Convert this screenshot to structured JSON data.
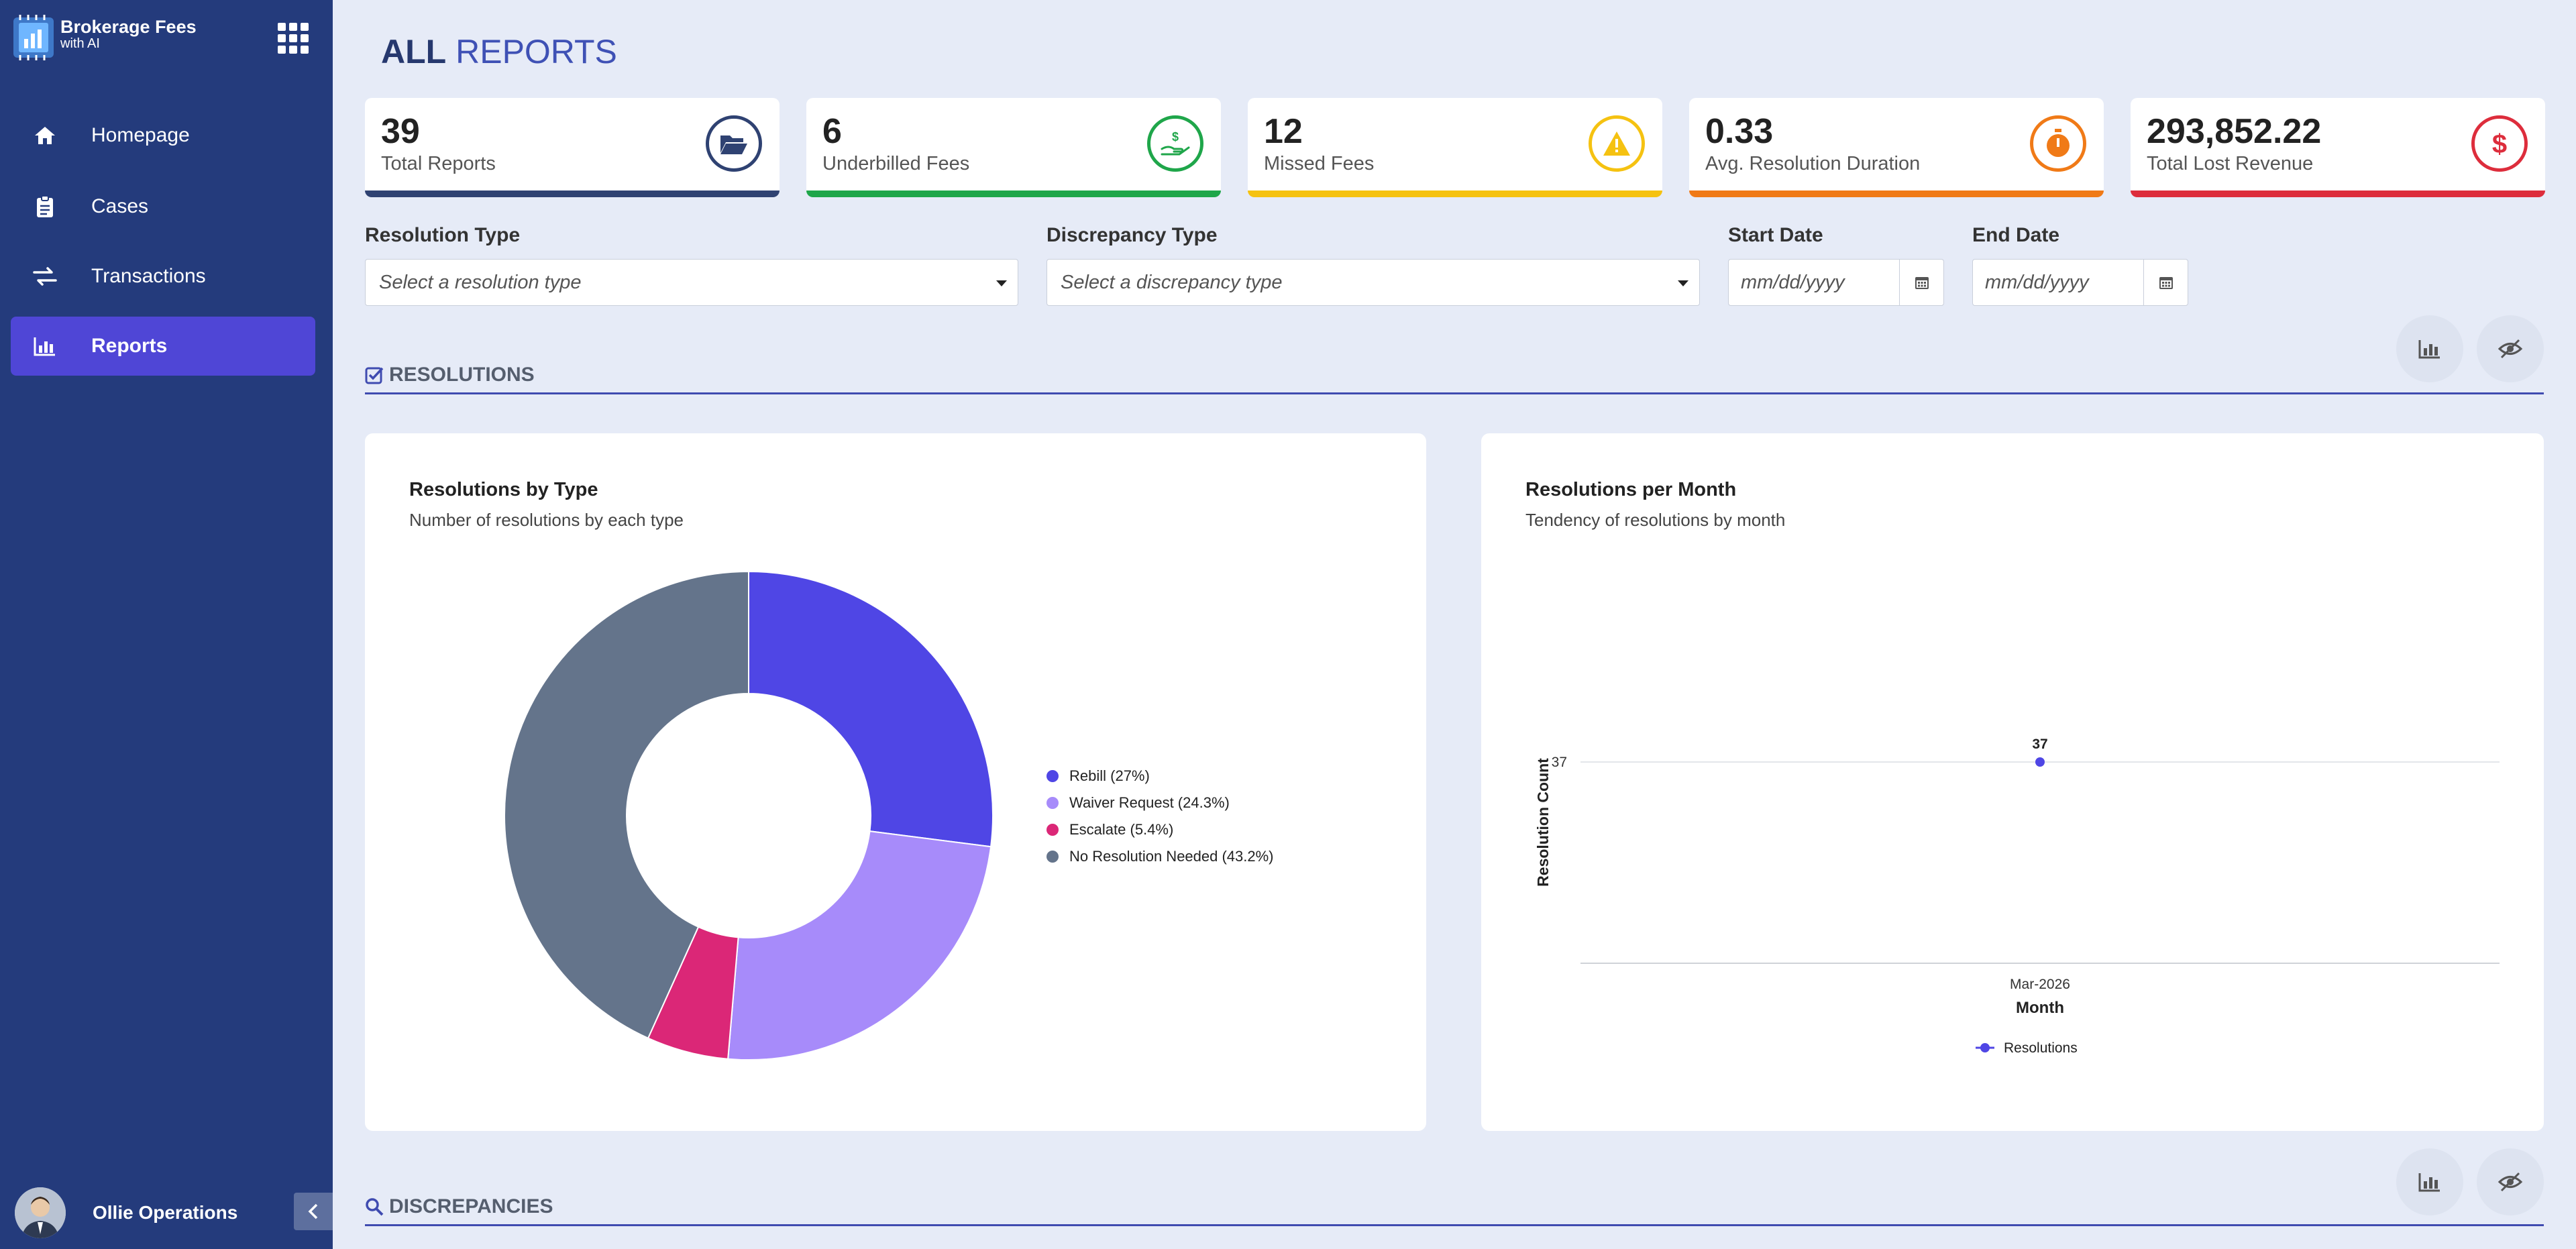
{
  "brand": {
    "name": "Brokerage Fees",
    "sub": "with AI"
  },
  "nav": [
    {
      "label": "Homepage",
      "icon": "home-icon"
    },
    {
      "label": "Cases",
      "icon": "clipboard-icon"
    },
    {
      "label": "Transactions",
      "icon": "exchange-icon"
    },
    {
      "label": "Reports",
      "icon": "bar-chart-icon",
      "active": true
    }
  ],
  "user": {
    "name": "Ollie Operations"
  },
  "page": {
    "title_bold": "ALL",
    "title_rest": "REPORTS"
  },
  "kpis": [
    {
      "value": "39",
      "label": "Total Reports",
      "color": "#2f4272",
      "icon": "folder-open-icon"
    },
    {
      "value": "6",
      "label": "Underbilled Fees",
      "color": "#1fa64a",
      "icon": "hand-dollar-icon"
    },
    {
      "value": "12",
      "label": "Missed Fees",
      "color": "#f5c211",
      "icon": "warning-icon"
    },
    {
      "value": "0.33",
      "label": "Avg. Resolution Duration",
      "color": "#f07a17",
      "icon": "stopwatch-icon"
    },
    {
      "value": "293,852.22",
      "label": "Total Lost Revenue",
      "color": "#dd2d3c",
      "icon": "dollar-icon"
    }
  ],
  "filters": {
    "resolution": {
      "label": "Resolution Type",
      "placeholder": "Select a resolution type"
    },
    "discrepancy": {
      "label": "Discrepancy Type",
      "placeholder": "Select a discrepancy type"
    },
    "start": {
      "label": "Start Date",
      "placeholder": "mm/dd/yyyy"
    },
    "end": {
      "label": "End Date",
      "placeholder": "mm/dd/yyyy"
    }
  },
  "sections": {
    "resolutions": "RESOLUTIONS",
    "discrepancies": "DISCREPANCIES"
  },
  "cards": {
    "by_type": {
      "title": "Resolutions by Type",
      "subtitle": "Number of resolutions by each type"
    },
    "per_month": {
      "title": "Resolutions per Month",
      "subtitle": "Tendency of resolutions by month"
    }
  },
  "chart_data": [
    {
      "type": "pie",
      "variant": "donut",
      "title": "Resolutions by Type",
      "subtitle": "Number of resolutions by each type",
      "categories": [
        "Rebill (27%)",
        "Waiver Request (24.3%)",
        "Escalate (5.4%)",
        "No Resolution Needed (43.2%)"
      ],
      "values": [
        27,
        24.3,
        5.4,
        43.2
      ],
      "colors": [
        "#4f46e5",
        "#a78bfa",
        "#db2777",
        "#64748b"
      ],
      "legend": "right"
    },
    {
      "type": "line",
      "title": "Resolutions per Month",
      "subtitle": "Tendency of resolutions by month",
      "x": [
        "Mar-2026"
      ],
      "series": [
        {
          "name": "Resolutions",
          "values": [
            37
          ],
          "color": "#4f46e5"
        }
      ],
      "xlabel": "Month",
      "ylabel": "Resolution Count",
      "yticks": [
        "37"
      ],
      "data_labels": [
        "37"
      ],
      "legend": "bottom"
    }
  ]
}
